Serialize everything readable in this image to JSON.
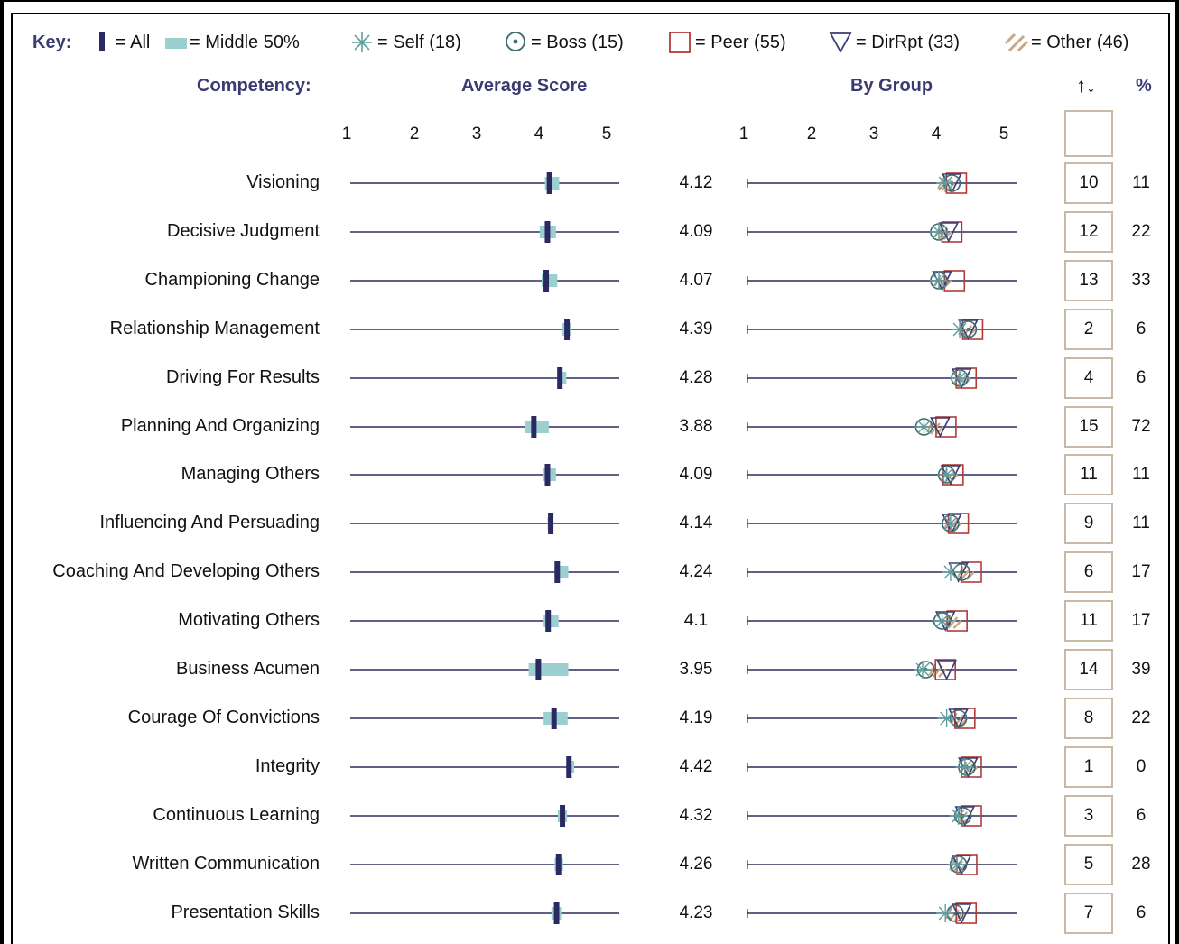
{
  "key": {
    "title": "Key:",
    "all": "= All",
    "middle": "= Middle 50%",
    "self": "= Self (18)",
    "boss": "= Boss (15)",
    "peer": "= Peer (55)",
    "dirrpt": "= DirRpt (33)",
    "other": "= Other (46)"
  },
  "headers": {
    "competency": "Competency:",
    "average_score": "Average Score",
    "by_group": "By Group",
    "sort_icon": "↑↓",
    "percent": "%"
  },
  "colors": {
    "axis_line": "#2d2d5e",
    "all_marker": "#2a2a62",
    "middle_band": "#9ccfd0",
    "self": "#5f9ea0",
    "boss": "#3e6b6b",
    "peer": "#b23b3b",
    "dirrpt": "#3b3b72",
    "other": "#c8a887",
    "header_text": "#3b3b72",
    "rank_box_border": "#c9b9a4"
  },
  "chart_data": {
    "type": "dot-range",
    "xlim": [
      1,
      5
    ],
    "ticks": [
      "1",
      "2",
      "3",
      "4",
      "5"
    ],
    "rows": [
      {
        "label": "Visioning",
        "avg": "4.12",
        "mid": [
          4.05,
          4.27
        ],
        "self": 4.1,
        "boss": 4.2,
        "peer": 4.27,
        "dirrpt": 4.2,
        "other": 4.1,
        "rank": "10",
        "pct": "11"
      },
      {
        "label": "Decisive Judgment",
        "avg": "4.09",
        "mid": [
          3.97,
          4.22
        ],
        "self": 4.0,
        "boss": 4.0,
        "peer": 4.2,
        "dirrpt": 4.15,
        "other": 4.05,
        "rank": "12",
        "pct": "22"
      },
      {
        "label": "Championing Change",
        "avg": "4.07",
        "mid": [
          4.0,
          4.24
        ],
        "self": 4.0,
        "boss": 4.0,
        "peer": 4.24,
        "dirrpt": 4.05,
        "other": 4.05,
        "rank": "13",
        "pct": "33"
      },
      {
        "label": "Relationship Management",
        "avg": "4.39",
        "mid": [
          4.32,
          4.45
        ],
        "self": 4.32,
        "boss": 4.45,
        "peer": 4.52,
        "dirrpt": 4.45,
        "other": 4.42,
        "rank": "2",
        "pct": "6"
      },
      {
        "label": "Driving For Results",
        "avg": "4.28",
        "mid": [
          4.25,
          4.38
        ],
        "self": 4.32,
        "boss": 4.32,
        "peer": 4.42,
        "dirrpt": 4.35,
        "other": 4.35,
        "rank": "4",
        "pct": "6"
      },
      {
        "label": "Planning And Organizing",
        "avg": "3.88",
        "mid": [
          3.75,
          4.11
        ],
        "self": 3.77,
        "boss": 3.77,
        "peer": 4.11,
        "dirrpt": 4.02,
        "other": 3.93,
        "rank": "15",
        "pct": "72"
      },
      {
        "label": "Managing Others",
        "avg": "4.09",
        "mid": [
          4.02,
          4.22
        ],
        "self": 4.12,
        "boss": 4.12,
        "peer": 4.22,
        "dirrpt": 4.18,
        "other": 4.15,
        "rank": "11",
        "pct": "11"
      },
      {
        "label": "Influencing And Persuading",
        "avg": "4.14",
        "mid": [
          4.09,
          4.18
        ],
        "self": 4.18,
        "boss": 4.18,
        "peer": 4.3,
        "dirrpt": 4.2,
        "other": 4.2,
        "rank": "9",
        "pct": "11"
      },
      {
        "label": "Coaching And Developing Others",
        "avg": "4.24",
        "mid": [
          4.2,
          4.41
        ],
        "self": 4.18,
        "boss": 4.35,
        "peer": 4.5,
        "dirrpt": 4.3,
        "other": 4.4,
        "rank": "6",
        "pct": "17"
      },
      {
        "label": "Motivating Others",
        "avg": "4.1",
        "mid": [
          4.03,
          4.26
        ],
        "self": 4.05,
        "boss": 4.05,
        "peer": 4.28,
        "dirrpt": 4.1,
        "other": 4.2,
        "rank": "11",
        "pct": "17"
      },
      {
        "label": "Business Acumen",
        "avg": "3.95",
        "mid": [
          3.8,
          4.41
        ],
        "self": 3.75,
        "boss": 3.8,
        "peer": 4.1,
        "dirrpt": 4.12,
        "other": 3.97,
        "rank": "14",
        "pct": "39"
      },
      {
        "label": "Courage Of Convictions",
        "avg": "4.19",
        "mid": [
          4.03,
          4.4
        ],
        "self": 4.12,
        "boss": 4.3,
        "peer": 4.4,
        "dirrpt": 4.3,
        "other": 4.3,
        "rank": "8",
        "pct": "22"
      },
      {
        "label": "Integrity",
        "avg": "4.42",
        "mid": [
          4.4,
          4.5
        ],
        "self": 4.4,
        "boss": 4.43,
        "peer": 4.5,
        "dirrpt": 4.45,
        "other": 4.45,
        "rank": "1",
        "pct": "0"
      },
      {
        "label": "Continuous Learning",
        "avg": "4.32",
        "mid": [
          4.25,
          4.39
        ],
        "self": 4.3,
        "boss": 4.37,
        "peer": 4.5,
        "dirrpt": 4.4,
        "other": 4.35,
        "rank": "3",
        "pct": "6"
      },
      {
        "label": "Written Communication",
        "avg": "4.26",
        "mid": [
          4.2,
          4.33
        ],
        "self": 4.28,
        "boss": 4.3,
        "peer": 4.43,
        "dirrpt": 4.35,
        "other": 4.28,
        "rank": "5",
        "pct": "28"
      },
      {
        "label": "Presentation Skills",
        "avg": "4.23",
        "mid": [
          4.15,
          4.3
        ],
        "self": 4.1,
        "boss": 4.25,
        "peer": 4.42,
        "dirrpt": 4.35,
        "other": 4.22,
        "rank": "7",
        "pct": "6"
      }
    ]
  }
}
